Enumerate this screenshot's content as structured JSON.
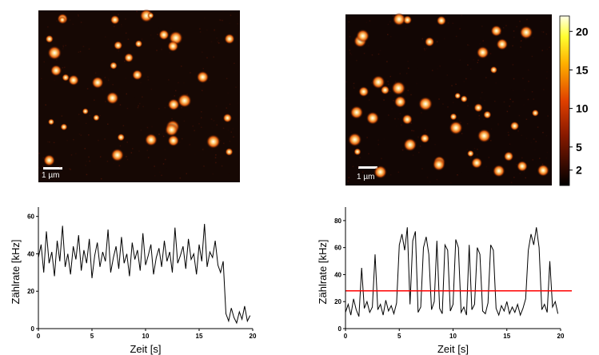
{
  "images": [
    {
      "scale_bar": "1 µm"
    },
    {
      "scale_bar": "1 µm"
    }
  ],
  "colorbar": {
    "lim": [
      0,
      22
    ],
    "ticks": [
      2,
      5,
      10,
      15,
      20
    ]
  },
  "chart_data": [
    {
      "type": "line",
      "xlabel": "Zeit [s]",
      "ylabel": "Zählrate [kHz]",
      "color": "#000000",
      "xlim": [
        0,
        20
      ],
      "xticks": [
        0,
        5,
        10,
        15,
        20
      ],
      "ylim": [
        0,
        65
      ],
      "yticks": [
        0,
        20,
        40,
        60
      ],
      "x": [
        0,
        0.25,
        0.5,
        0.75,
        1,
        1.25,
        1.5,
        1.75,
        2,
        2.25,
        2.5,
        2.75,
        3,
        3.25,
        3.5,
        3.75,
        4,
        4.25,
        4.5,
        4.75,
        5,
        5.25,
        5.5,
        5.75,
        6,
        6.25,
        6.5,
        6.75,
        7,
        7.25,
        7.5,
        7.75,
        8,
        8.25,
        8.5,
        8.75,
        9,
        9.25,
        9.5,
        9.75,
        10,
        10.25,
        10.5,
        10.75,
        11,
        11.25,
        11.5,
        11.75,
        12,
        12.25,
        12.5,
        12.75,
        13,
        13.25,
        13.5,
        13.75,
        14,
        14.25,
        14.5,
        14.75,
        15,
        15.25,
        15.5,
        15.75,
        16,
        16.25,
        16.5,
        16.75,
        17,
        17.25,
        17.5,
        17.75,
        18,
        18.25,
        18.5,
        18.75,
        19,
        19.25,
        19.5,
        19.75
      ],
      "values": [
        38,
        45,
        30,
        52,
        35,
        41,
        28,
        47,
        36,
        55,
        33,
        40,
        29,
        44,
        37,
        50,
        31,
        42,
        35,
        48,
        27,
        39,
        46,
        33,
        41,
        36,
        53,
        30,
        38,
        44,
        32,
        49,
        35,
        40,
        28,
        46,
        37,
        42,
        31,
        51,
        34,
        39,
        45,
        29,
        38,
        43,
        33,
        47,
        36,
        41,
        30,
        54,
        35,
        39,
        44,
        32,
        48,
        37,
        40,
        29,
        45,
        36,
        56,
        33,
        41,
        38,
        47,
        34,
        30,
        36,
        8,
        4,
        11,
        6,
        3,
        9,
        5,
        12,
        4,
        7
      ]
    },
    {
      "type": "line",
      "xlabel": "Zeit [s]",
      "ylabel": "Zählrate [kHz]",
      "color": "#000000",
      "xlim": [
        0,
        20
      ],
      "xticks": [
        0,
        5,
        10,
        15,
        20
      ],
      "ylim": [
        0,
        90
      ],
      "yticks": [
        0,
        20,
        40,
        60,
        80
      ],
      "threshold": 28,
      "threshold_color": "#ff0000",
      "x": [
        0,
        0.25,
        0.5,
        0.75,
        1,
        1.25,
        1.5,
        1.75,
        2,
        2.25,
        2.5,
        2.75,
        3,
        3.25,
        3.5,
        3.75,
        4,
        4.25,
        4.5,
        4.75,
        5,
        5.25,
        5.5,
        5.75,
        6,
        6.25,
        6.5,
        6.75,
        7,
        7.25,
        7.5,
        7.75,
        8,
        8.25,
        8.5,
        8.75,
        9,
        9.25,
        9.5,
        9.75,
        10,
        10.25,
        10.5,
        10.75,
        11,
        11.25,
        11.5,
        11.75,
        12,
        12.25,
        12.5,
        12.75,
        13,
        13.25,
        13.5,
        13.75,
        14,
        14.25,
        14.5,
        14.75,
        15,
        15.25,
        15.5,
        15.75,
        16,
        16.25,
        16.5,
        16.75,
        17,
        17.25,
        17.5,
        17.75,
        18,
        18.25,
        18.5,
        18.75,
        19,
        19.25,
        19.5,
        19.75
      ],
      "values": [
        12,
        18,
        10,
        22,
        14,
        9,
        45,
        15,
        20,
        12,
        16,
        55,
        14,
        18,
        10,
        21,
        13,
        17,
        11,
        19,
        62,
        70,
        58,
        75,
        18,
        65,
        72,
        12,
        16,
        60,
        68,
        55,
        14,
        20,
        65,
        15,
        11,
        62,
        58,
        13,
        18,
        66,
        60,
        12,
        16,
        10,
        62,
        14,
        18,
        60,
        55,
        13,
        11,
        19,
        62,
        58,
        15,
        10,
        17,
        13,
        20,
        11,
        16,
        12,
        18,
        10,
        15,
        22,
        58,
        70,
        62,
        75,
        60,
        14,
        18,
        12,
        50,
        16,
        20,
        11
      ]
    }
  ]
}
